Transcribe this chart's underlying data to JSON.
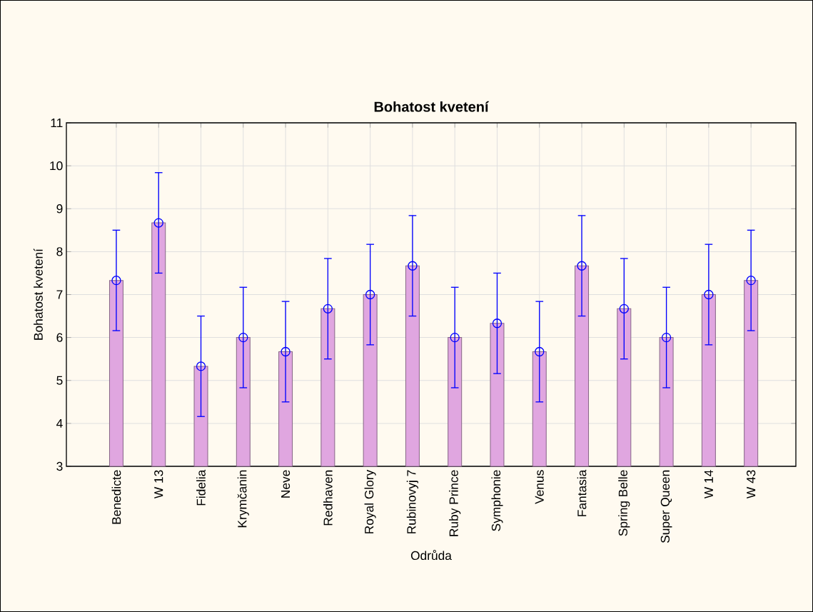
{
  "chart_data": {
    "type": "bar",
    "title": "Bohatost kvetení",
    "xlabel": "Odrůda",
    "ylabel": "Bohatost kvetení",
    "categories": [
      "Benedicte",
      "W 13",
      "Fidelia",
      "Krymčanin",
      "Neve",
      "Redhaven",
      "Royal Glory",
      "Rubinovyj 7",
      "Ruby Prince",
      "Symphonie",
      "Venus",
      "Fantasia",
      "Spring Belle",
      "Super Queen",
      "W 14",
      "W 43"
    ],
    "series": [
      {
        "color": "#e0a6e0",
        "values": [
          7.33,
          8.67,
          5.33,
          6.0,
          5.67,
          6.67,
          7.0,
          7.67,
          6.0,
          6.33,
          5.67,
          7.67,
          6.67,
          6.0,
          7.0,
          7.33
        ]
      },
      {
        "type": "scatter",
        "color": "#0000ff",
        "marker": "circle",
        "values": [
          7.33,
          8.67,
          5.33,
          6.0,
          5.67,
          6.67,
          7.0,
          7.67,
          6.0,
          6.33,
          5.67,
          7.67,
          6.67,
          6.0,
          7.0,
          7.33
        ],
        "errors": [
          1.17,
          1.17,
          1.17,
          1.17,
          1.17,
          1.17,
          1.17,
          1.17,
          1.17,
          1.17,
          1.17,
          1.17,
          1.17,
          1.17,
          1.17,
          1.17
        ]
      }
    ],
    "ylim": [
      3,
      11
    ],
    "yticks": [
      3,
      4,
      5,
      6,
      7,
      8,
      9,
      10,
      11
    ],
    "grid": true
  }
}
